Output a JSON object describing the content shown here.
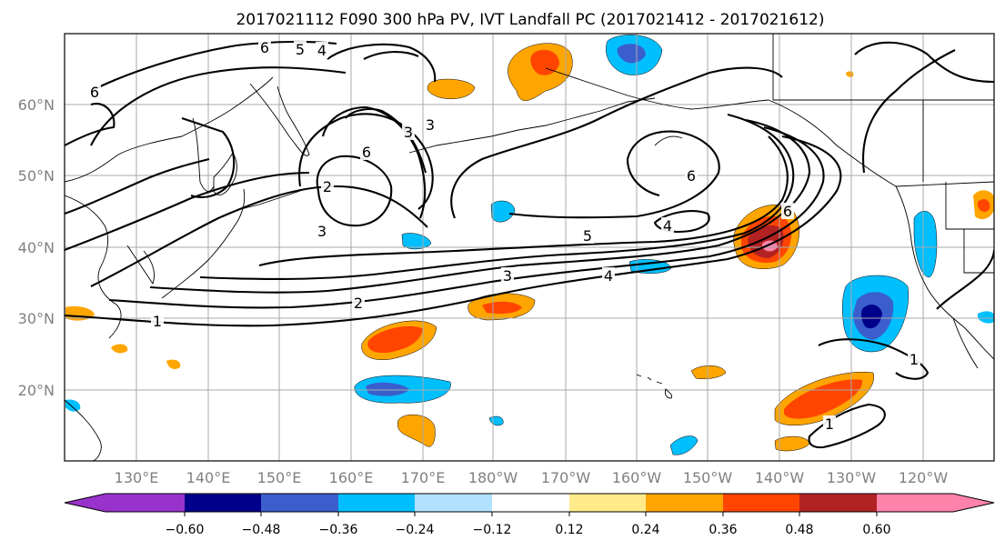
{
  "title": "2017021112 F090 300 hPa PV, IVT Landfall PC (2017021412 - 2017021612)",
  "lat_labels": [
    "60°N",
    "50°N",
    "40°N",
    "30°N",
    "20°N"
  ],
  "lon_labels": [
    "130°E",
    "140°E",
    "150°E",
    "160°E",
    "170°E",
    "180°W",
    "170°W",
    "160°W",
    "150°W",
    "140°W",
    "130°W",
    "120°W"
  ],
  "colorbar": {
    "tick_labels": [
      "−0.60",
      "−0.48",
      "−0.36",
      "−0.24",
      "−0.12",
      "0.12",
      "0.24",
      "0.36",
      "0.48",
      "0.60"
    ],
    "colors": [
      "#9932cc",
      "#00008b",
      "#3a5fcd",
      "#00bfff",
      "#b0e2ff",
      "#ffffff",
      "#ffeb8a",
      "#ffa500",
      "#ff4500",
      "#b22222",
      "#ff82ab"
    ]
  },
  "contour_labels": [
    "6",
    "5",
    "4",
    "6",
    "3",
    "3",
    "6",
    "2",
    "6",
    "3",
    "5",
    "6",
    "4",
    "3",
    "4",
    "2",
    "1",
    "1",
    "1"
  ],
  "colors": {
    "grid": "#a9a9a9",
    "axis_label": "#808080",
    "contour": "#000000"
  }
}
